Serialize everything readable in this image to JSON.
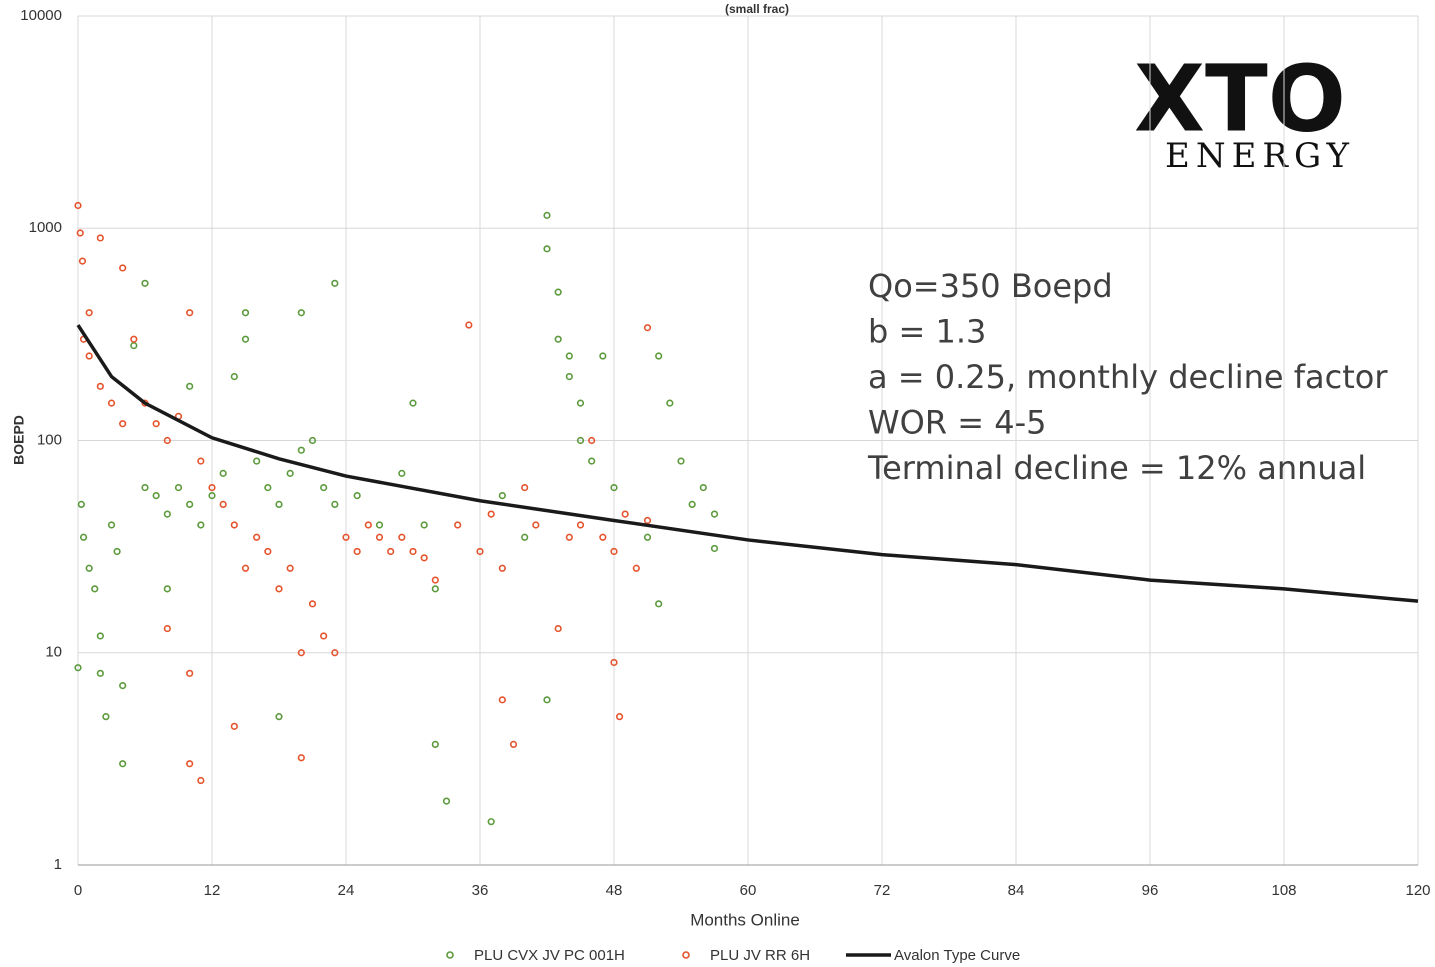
{
  "chart_data": {
    "type": "scatter",
    "title": "(small frac)",
    "xlabel": "Months Online",
    "ylabel": "BOEPD",
    "log_y": true,
    "grid": true,
    "xlim": [
      0,
      120
    ],
    "xticks": [
      0,
      12,
      24,
      36,
      48,
      60,
      72,
      84,
      96,
      108,
      120
    ],
    "ylim": [
      1,
      10000
    ],
    "yticks": [
      1,
      10,
      100,
      1000,
      10000
    ],
    "annotations": [
      "Qo=350 Boepd",
      "b = 1.3",
      "a = 0.25, monthly decline factor",
      "WOR = 4-5",
      "Terminal decline = 12% annual"
    ],
    "logo": {
      "top": "XTO",
      "bottom": "ENERGY"
    },
    "series": [
      {
        "name": "PLU CVX JV PC 001H",
        "type": "scatter",
        "color": "#5b9a3c",
        "x": [
          0,
          0.3,
          0.5,
          1,
          1.5,
          2,
          2,
          2.5,
          3,
          3.5,
          4,
          4,
          5,
          6,
          6,
          7,
          8,
          8,
          9,
          10,
          10,
          11,
          12,
          13,
          14,
          15,
          15,
          16,
          17,
          18,
          18,
          19,
          20,
          20,
          21,
          22,
          23,
          23,
          25,
          27,
          29,
          30,
          31,
          32,
          32,
          33,
          37,
          38,
          40,
          42,
          42,
          42,
          43,
          43,
          44,
          44,
          45,
          45,
          46,
          47,
          48,
          51,
          52,
          52,
          53,
          54,
          55,
          56,
          57,
          57
        ],
        "values": [
          8.5,
          50,
          35,
          25,
          20,
          12,
          8,
          5,
          40,
          30,
          7,
          3,
          280,
          550,
          60,
          55,
          45,
          20,
          60,
          50,
          180,
          40,
          55,
          70,
          200,
          400,
          300,
          80,
          60,
          5,
          50,
          70,
          400,
          90,
          100,
          60,
          550,
          50,
          55,
          40,
          70,
          150,
          40,
          20,
          3.7,
          2,
          1.6,
          55,
          35,
          6,
          1150,
          800,
          500,
          300,
          250,
          200,
          150,
          100,
          80,
          250,
          60,
          35,
          250,
          17,
          150,
          80,
          50,
          60,
          45,
          31
        ]
      },
      {
        "name": "PLU JV RR 6H",
        "type": "scatter",
        "color": "#e5532c",
        "x": [
          0,
          0.2,
          0.4,
          0.5,
          1,
          1,
          2,
          2,
          3,
          4,
          4,
          5,
          6,
          7,
          8,
          8,
          9,
          10,
          10,
          10,
          11,
          11,
          12,
          13,
          14,
          14,
          15,
          16,
          17,
          18,
          19,
          20,
          20,
          21,
          22,
          23,
          24,
          25,
          26,
          27,
          28,
          29,
          30,
          31,
          32,
          34,
          35,
          36,
          37,
          38,
          38,
          39,
          40,
          41,
          43,
          44,
          45,
          46,
          47,
          48,
          48,
          48.5,
          49,
          50,
          51,
          51
        ],
        "values": [
          1280,
          950,
          700,
          300,
          400,
          250,
          900,
          180,
          150,
          650,
          120,
          300,
          150,
          120,
          100,
          13,
          130,
          400,
          3,
          8,
          2.5,
          80,
          60,
          50,
          40,
          4.5,
          25,
          35,
          30,
          20,
          25,
          10,
          3.2,
          17,
          12,
          10,
          35,
          30,
          40,
          35,
          30,
          35,
          30,
          28,
          22,
          40,
          350,
          30,
          45,
          25,
          6,
          3.7,
          60,
          40,
          13,
          35,
          40,
          100,
          35,
          30,
          9,
          5,
          45,
          25,
          42,
          340
        ]
      },
      {
        "name": "Avalon Type Curve",
        "type": "line",
        "color": "#1a1a1a",
        "x": [
          0,
          3,
          6,
          12,
          18,
          24,
          36,
          48,
          60,
          72,
          84,
          96,
          108,
          120
        ],
        "values": [
          350,
          200,
          150,
          103,
          82,
          68,
          52,
          42,
          34,
          29,
          26,
          22,
          20,
          17.5
        ]
      }
    ]
  }
}
